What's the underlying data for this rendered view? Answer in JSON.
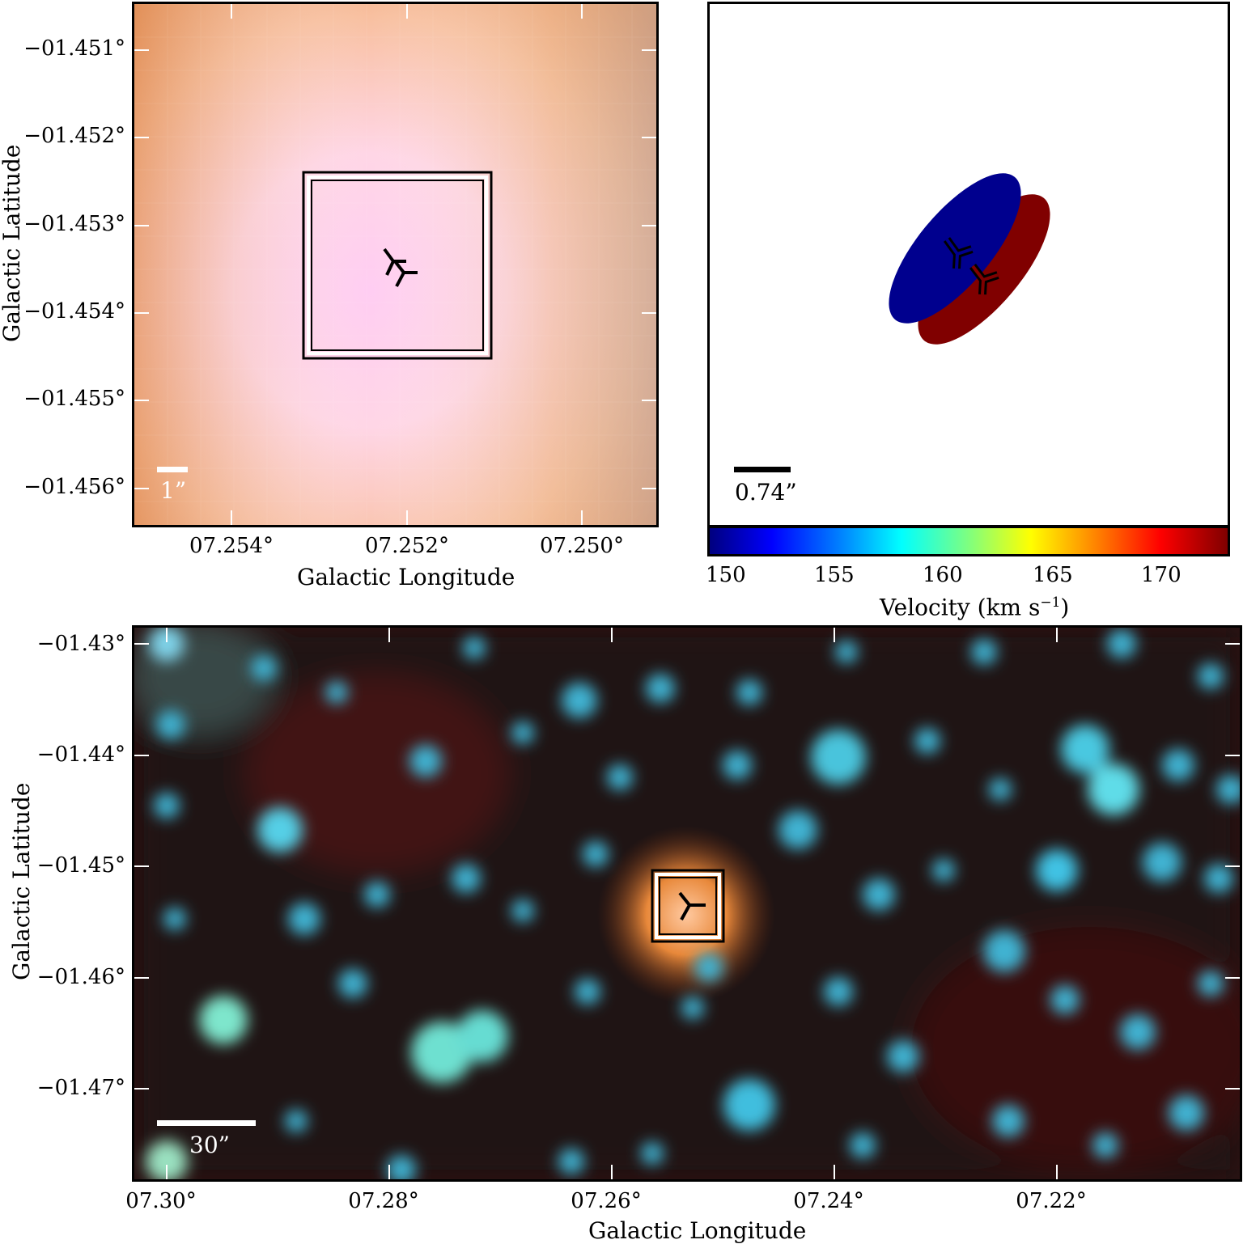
{
  "top_left": {
    "y_ticks": [
      "−01.451°",
      "−01.452°",
      "−01.453°",
      "−01.454°",
      "−01.455°",
      "−01.456°"
    ],
    "x_ticks": [
      "07.254°",
      "07.252°",
      "07.250°"
    ],
    "xlabel": "Galactic Longitude",
    "ylabel": "Galactic Latitude",
    "scalebar_label": "1”",
    "colors": {
      "main": "#f6c3a6",
      "center": "#ffd2f4",
      "corner_tl": "#e0925c",
      "corner_tr": "#c9b1a8"
    }
  },
  "top_right": {
    "scalebar_label": "0.74”",
    "ellipse_colors": {
      "blue": "#00008e",
      "red": "#800000"
    },
    "colorbar": {
      "ticks": [
        "150",
        "155",
        "160",
        "165",
        "170"
      ],
      "label": "Velocity (km s",
      "label_sup": "−1",
      "label_end": ")"
    }
  },
  "bottom": {
    "y_ticks": [
      "−01.43°",
      "−01.44°",
      "−01.45°",
      "−01.46°",
      "−01.47°"
    ],
    "x_ticks": [
      "07.30°",
      "07.28°",
      "07.26°",
      "07.24°",
      "07.22°"
    ],
    "xlabel": "Galactic Longitude",
    "ylabel": "Galactic Latitude",
    "scalebar_label": "30”",
    "colors": {
      "background": "#2a0e0e",
      "stars": "#4fc6e0",
      "source": "#e08a3c"
    }
  }
}
